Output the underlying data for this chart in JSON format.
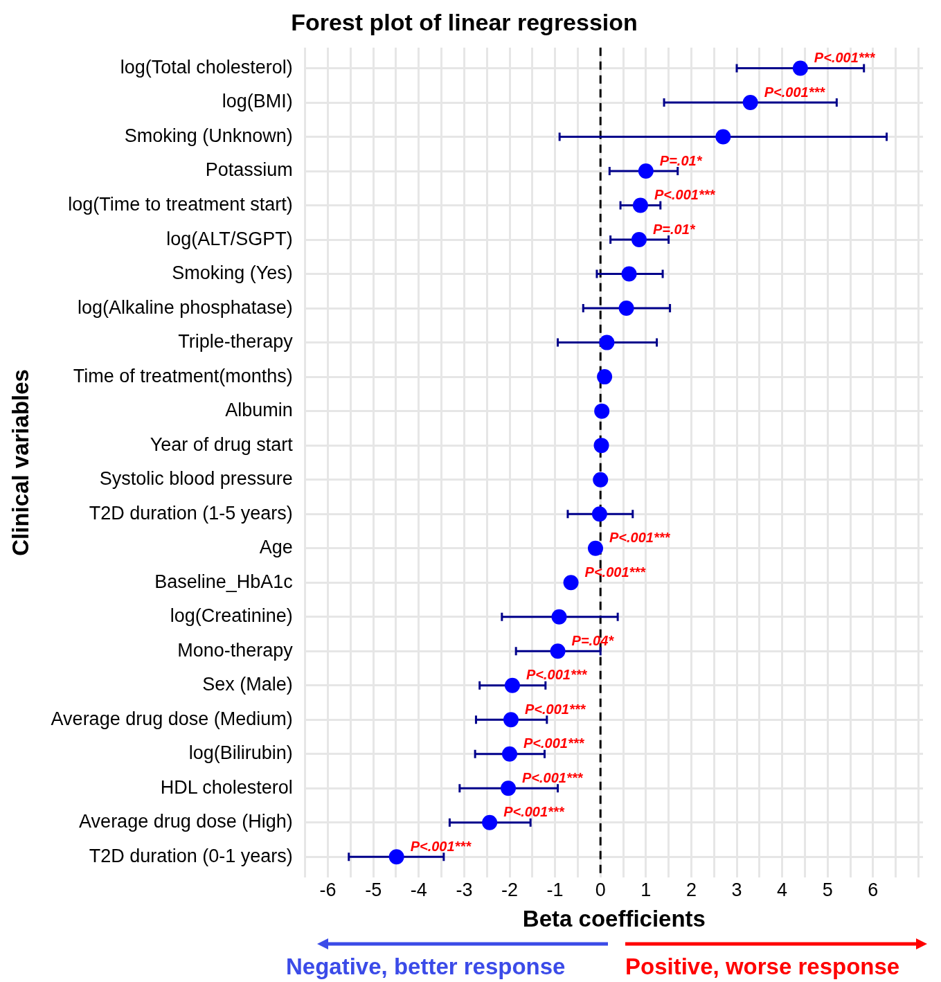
{
  "chart_data": {
    "type": "scatter",
    "orientation": "horizontal",
    "title": "Forest plot of linear regression",
    "xlabel": "Beta coefficients",
    "ylabel": "Clinical variables",
    "categories": [
      "log(Total cholesterol)",
      "log(BMI)",
      "Smoking (Unknown)",
      "Potassium",
      "log(Time to treatment start)",
      "log(ALT/SGPT)",
      "Smoking (Yes)",
      "log(Alkaline phosphatase)",
      "Triple-therapy",
      "Time of treatment(months)",
      "Albumin",
      "Year of drug start",
      "Systolic blood pressure",
      "T2D duration (1-5 years)",
      "Age",
      "Baseline_HbA1c",
      "log(Creatinine)",
      "Mono-therapy",
      "Sex (Male)",
      "Average drug dose (Medium)",
      "log(Bilirubin)",
      "HDL cholesterol",
      "Average drug dose (High)",
      "T2D duration (0-1 years)"
    ],
    "series": [
      {
        "color": "#0000ff",
        "values": [
          4.4,
          3.3,
          2.7,
          1.0,
          0.88,
          0.85,
          0.63,
          0.57,
          0.14,
          0.09,
          0.03,
          0.02,
          0.0,
          -0.02,
          -0.11,
          -0.65,
          -0.91,
          -0.94,
          -1.94,
          -1.97,
          -2.0,
          -2.03,
          -2.44,
          -4.49
        ],
        "errors": [
          [
            3.0,
            5.8
          ],
          [
            1.4,
            5.2
          ],
          [
            -0.9,
            6.3
          ],
          [
            0.2,
            1.7
          ],
          [
            0.44,
            1.32
          ],
          [
            0.22,
            1.5
          ],
          [
            -0.08,
            1.37
          ],
          [
            -0.38,
            1.53
          ],
          [
            -0.94,
            1.24
          ],
          [
            0.06,
            0.12
          ],
          [
            0.01,
            0.05
          ],
          [
            0.0,
            0.04
          ],
          [
            -0.01,
            0.01
          ],
          [
            -0.72,
            0.71
          ],
          [
            -0.13,
            -0.09
          ],
          [
            -0.68,
            -0.62
          ],
          [
            -2.17,
            0.38
          ],
          [
            -1.86,
            0.0
          ],
          [
            -2.66,
            -1.21
          ],
          [
            -2.74,
            -1.18
          ],
          [
            -2.76,
            -1.23
          ],
          [
            -3.1,
            -0.94
          ],
          [
            -3.32,
            -1.54
          ],
          [
            -5.54,
            -3.45
          ]
        ]
      }
    ],
    "xlim": [
      -6.5,
      7.1
    ],
    "xticks": [
      {
        "value": -6.5,
        "label": null
      },
      -6,
      {
        "value": -5.5,
        "label": null
      },
      -5,
      {
        "value": -4.5,
        "label": null
      },
      -4,
      {
        "value": -3.5,
        "label": null
      },
      -3,
      {
        "value": -2.5,
        "label": null
      },
      -2,
      {
        "value": -1.5,
        "label": null
      },
      -1,
      {
        "value": -0.5,
        "label": null
      },
      0,
      {
        "value": 0.5,
        "label": null
      },
      1,
      {
        "value": 1.5,
        "label": null
      },
      2,
      {
        "value": 2.5,
        "label": null
      },
      3,
      {
        "value": 3.5,
        "label": null
      },
      4,
      {
        "value": 4.5,
        "label": null
      },
      5,
      {
        "value": 5.5,
        "label": null
      },
      6,
      {
        "value": 6.5,
        "label": null
      },
      {
        "value": 7,
        "label": null
      }
    ],
    "ref_lines": [
      {
        "axis": "x",
        "value": 0,
        "color": "#000000",
        "line_style": "dashed"
      }
    ],
    "grid": true,
    "legend": false,
    "marker": "circle",
    "annotations": [
      {
        "text": "P<.001***",
        "x": 4.4,
        "y": "log(Total cholesterol)"
      },
      {
        "text": "P<.001***",
        "x": 3.3,
        "y": "log(BMI)"
      },
      {
        "text": "P=.01*",
        "x": 1.0,
        "y": "Potassium"
      },
      {
        "text": "P<.001***",
        "x": 0.88,
        "y": "log(Time to treatment start)"
      },
      {
        "text": "P=.01*",
        "x": 0.85,
        "y": "log(ALT/SGPT)"
      },
      {
        "text": "P<.001***",
        "x": -0.11,
        "y": "Age"
      },
      {
        "text": "P<.001***",
        "x": -0.65,
        "y": "Baseline_HbA1c"
      },
      {
        "text": "P=.04*",
        "x": -0.94,
        "y": "Mono-therapy"
      },
      {
        "text": "P<.001***",
        "x": -1.94,
        "y": "Sex (Male)"
      },
      {
        "text": "P<.001***",
        "x": -1.97,
        "y": "Average drug dose (Medium)"
      },
      {
        "text": "P<.001***",
        "x": -2.0,
        "y": "log(Bilirubin)"
      },
      {
        "text": "P<.001***",
        "x": -2.03,
        "y": "HDL cholesterol"
      },
      {
        "text": "P<.001***",
        "x": -2.44,
        "y": "Average drug dose (High)"
      },
      {
        "text": "P<.001***",
        "x": -4.49,
        "y": "T2D duration (0-1 years)"
      },
      "Negative, better response",
      "Positive, worse response"
    ]
  }
}
